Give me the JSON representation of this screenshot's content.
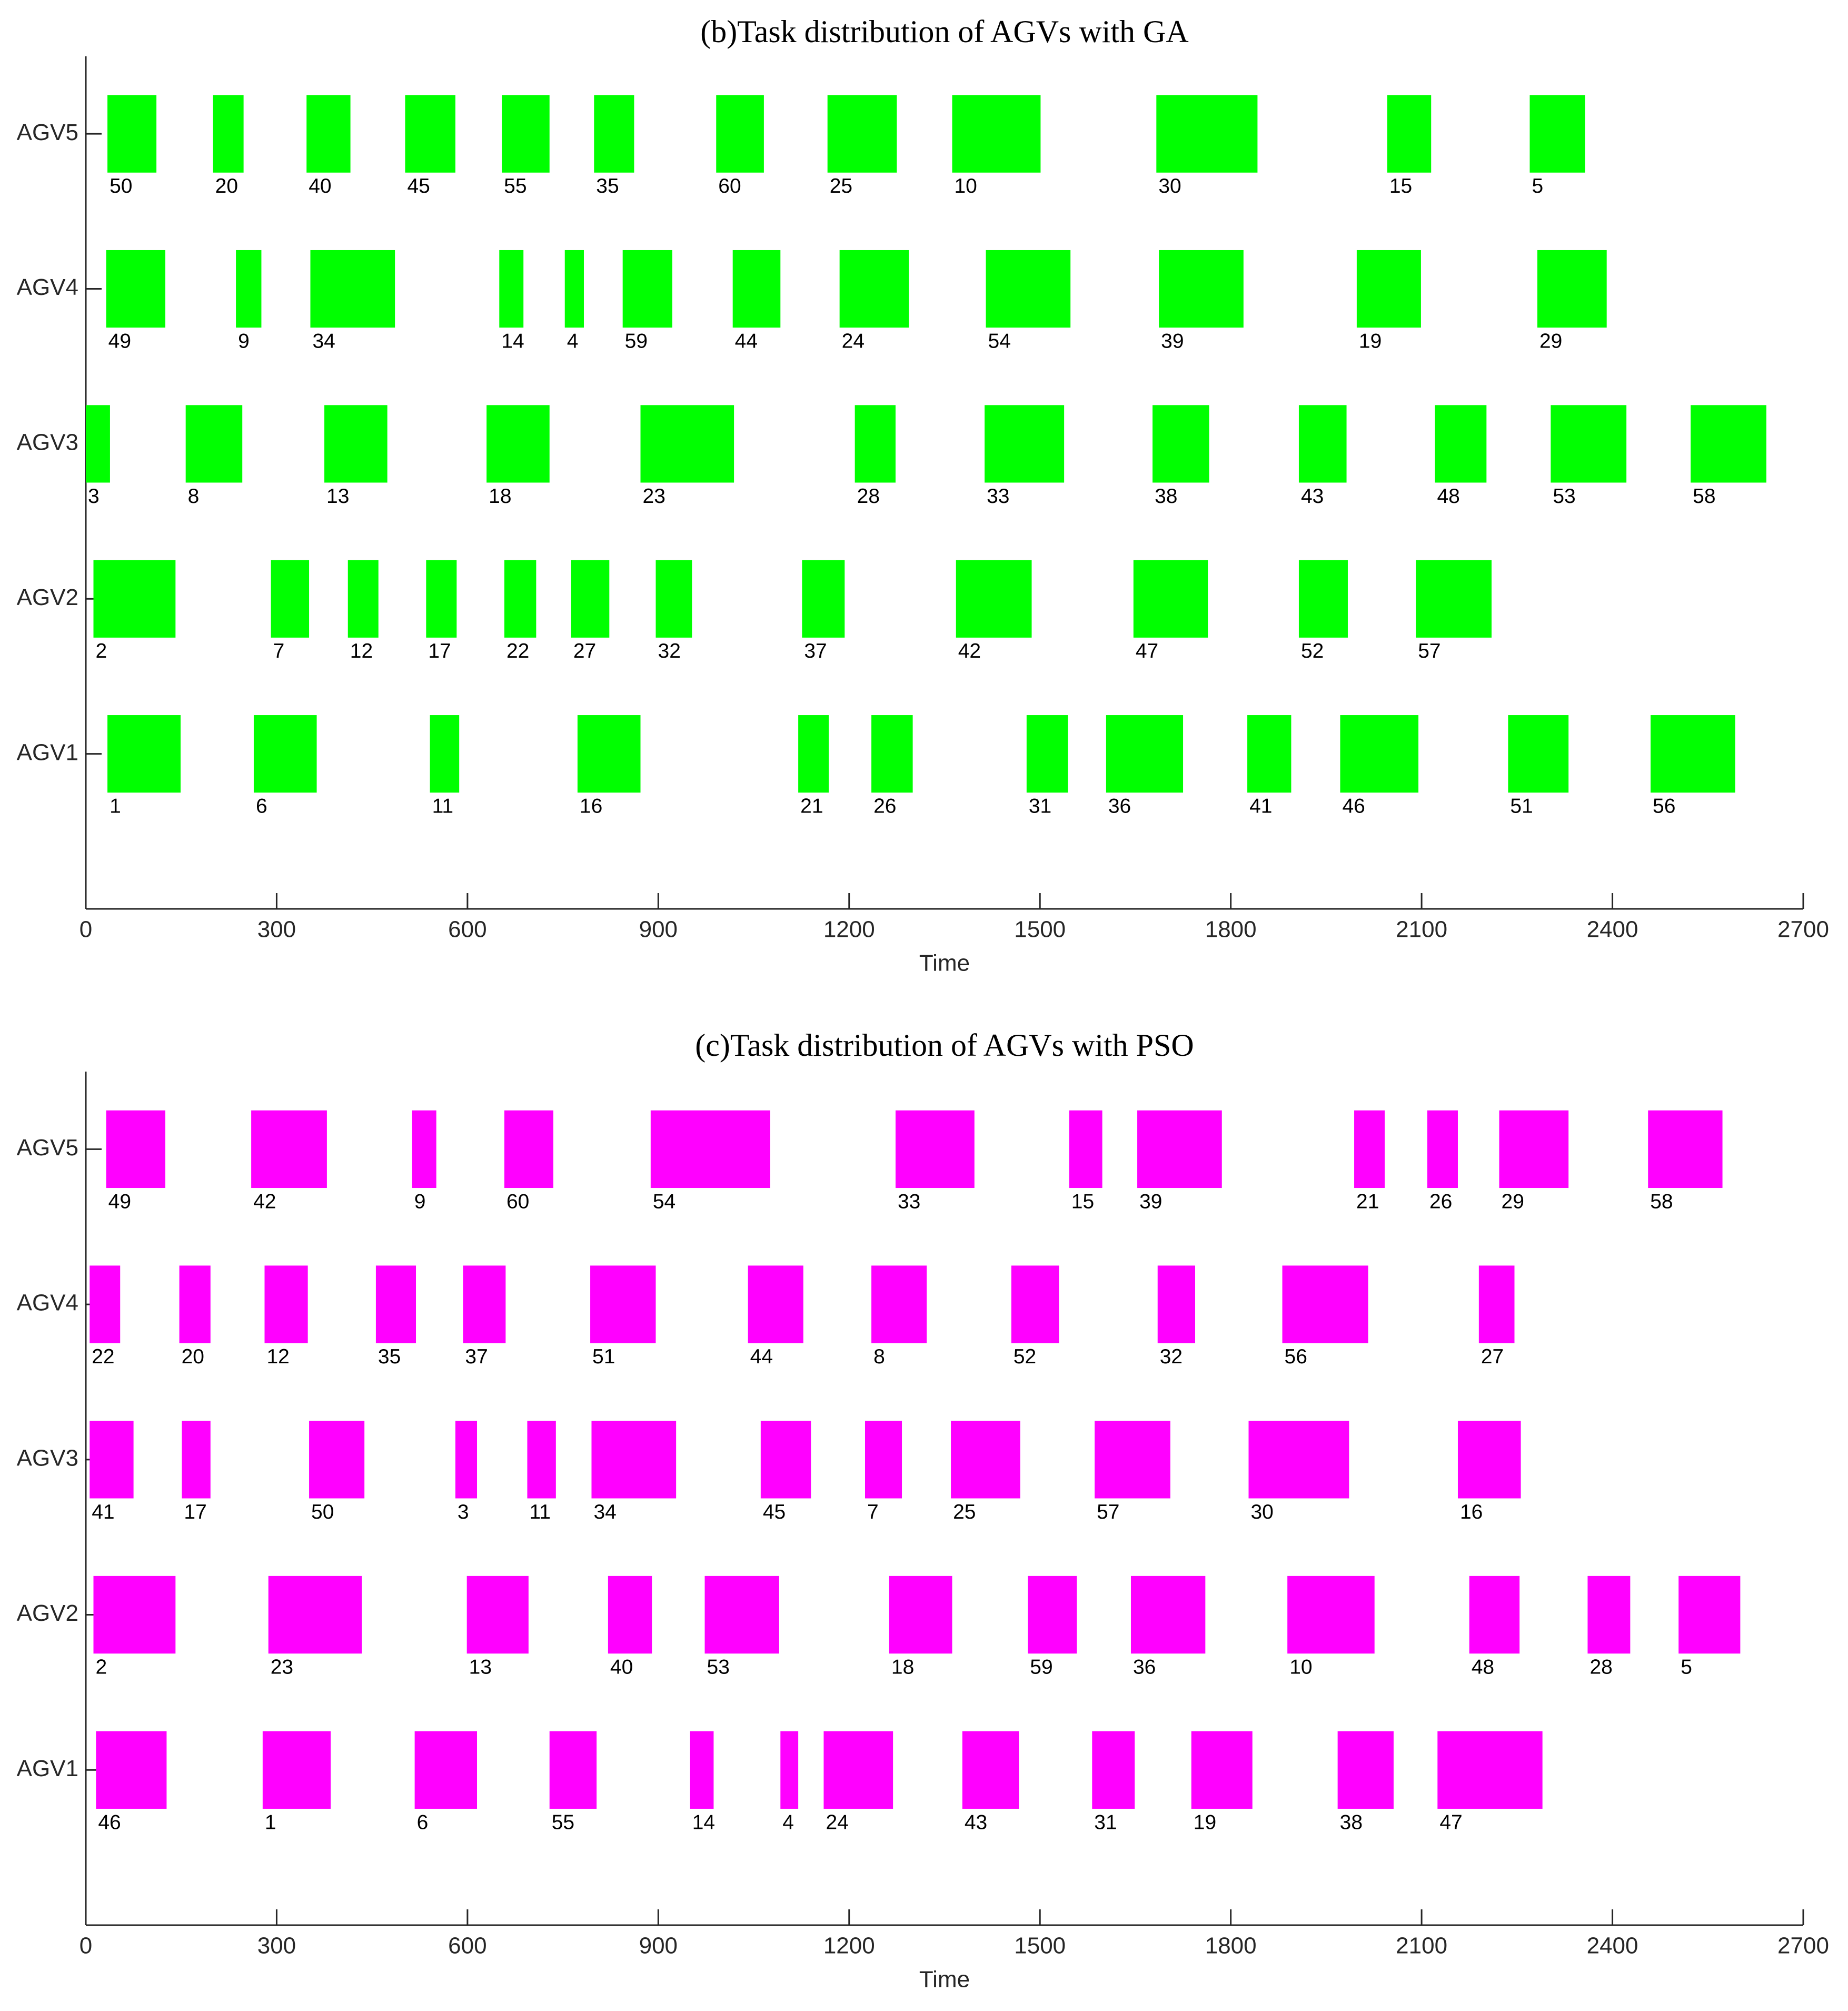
{
  "chart_data": [
    {
      "type": "gantt",
      "title": "(b)Task distribution of AGVs with GA",
      "xlabel": "Time",
      "color": "#00ff00",
      "categories": [
        "AGV1",
        "AGV2",
        "AGV3",
        "AGV4",
        "AGV5"
      ],
      "xlim": [
        0,
        2700
      ],
      "xticks": [
        0,
        300,
        600,
        900,
        1200,
        1500,
        1800,
        2100,
        2400,
        2700
      ],
      "tasks": [
        {
          "label": "50",
          "category": "AGV5",
          "start": 34,
          "end": 111
        },
        {
          "label": "20",
          "category": "AGV5",
          "start": 200,
          "end": 248
        },
        {
          "label": "40",
          "category": "AGV5",
          "start": 347,
          "end": 416
        },
        {
          "label": "45",
          "category": "AGV5",
          "start": 502,
          "end": 581
        },
        {
          "label": "55",
          "category": "AGV5",
          "start": 654,
          "end": 729
        },
        {
          "label": "35",
          "category": "AGV5",
          "start": 799,
          "end": 862
        },
        {
          "label": "60",
          "category": "AGV5",
          "start": 991,
          "end": 1066
        },
        {
          "label": "25",
          "category": "AGV5",
          "start": 1166,
          "end": 1275
        },
        {
          "label": "10",
          "category": "AGV5",
          "start": 1362,
          "end": 1501
        },
        {
          "label": "30",
          "category": "AGV5",
          "start": 1683,
          "end": 1842
        },
        {
          "label": "15",
          "category": "AGV5",
          "start": 2046,
          "end": 2115
        },
        {
          "label": "5",
          "category": "AGV5",
          "start": 2270,
          "end": 2357
        },
        {
          "label": "49",
          "category": "AGV4",
          "start": 32,
          "end": 125
        },
        {
          "label": "9",
          "category": "AGV4",
          "start": 236,
          "end": 276
        },
        {
          "label": "34",
          "category": "AGV4",
          "start": 353,
          "end": 486
        },
        {
          "label": "14",
          "category": "AGV4",
          "start": 650,
          "end": 688
        },
        {
          "label": "4",
          "category": "AGV4",
          "start": 753,
          "end": 783
        },
        {
          "label": "59",
          "category": "AGV4",
          "start": 844,
          "end": 922
        },
        {
          "label": "44",
          "category": "AGV4",
          "start": 1017,
          "end": 1092
        },
        {
          "label": "24",
          "category": "AGV4",
          "start": 1185,
          "end": 1294
        },
        {
          "label": "54",
          "category": "AGV4",
          "start": 1415,
          "end": 1548
        },
        {
          "label": "39",
          "category": "AGV4",
          "start": 1687,
          "end": 1820
        },
        {
          "label": "19",
          "category": "AGV4",
          "start": 1998,
          "end": 2099
        },
        {
          "label": "29",
          "category": "AGV4",
          "start": 2282,
          "end": 2391
        },
        {
          "label": "3",
          "category": "AGV3",
          "start": 0,
          "end": 38
        },
        {
          "label": "8",
          "category": "AGV3",
          "start": 157,
          "end": 246
        },
        {
          "label": "13",
          "category": "AGV3",
          "start": 375,
          "end": 474
        },
        {
          "label": "18",
          "category": "AGV3",
          "start": 630,
          "end": 729
        },
        {
          "label": "23",
          "category": "AGV3",
          "start": 872,
          "end": 1019
        },
        {
          "label": "28",
          "category": "AGV3",
          "start": 1209,
          "end": 1273
        },
        {
          "label": "33",
          "category": "AGV3",
          "start": 1413,
          "end": 1538
        },
        {
          "label": "38",
          "category": "AGV3",
          "start": 1677,
          "end": 1766
        },
        {
          "label": "43",
          "category": "AGV3",
          "start": 1907,
          "end": 1982
        },
        {
          "label": "48",
          "category": "AGV3",
          "start": 2121,
          "end": 2202
        },
        {
          "label": "53",
          "category": "AGV3",
          "start": 2303,
          "end": 2422
        },
        {
          "label": "58",
          "category": "AGV3",
          "start": 2523,
          "end": 2642
        },
        {
          "label": "2",
          "category": "AGV2",
          "start": 12,
          "end": 141
        },
        {
          "label": "7",
          "category": "AGV2",
          "start": 291,
          "end": 351
        },
        {
          "label": "12",
          "category": "AGV2",
          "start": 412,
          "end": 460
        },
        {
          "label": "17",
          "category": "AGV2",
          "start": 535,
          "end": 583
        },
        {
          "label": "22",
          "category": "AGV2",
          "start": 658,
          "end": 708
        },
        {
          "label": "27",
          "category": "AGV2",
          "start": 763,
          "end": 823
        },
        {
          "label": "32",
          "category": "AGV2",
          "start": 896,
          "end": 953
        },
        {
          "label": "37",
          "category": "AGV2",
          "start": 1126,
          "end": 1193
        },
        {
          "label": "42",
          "category": "AGV2",
          "start": 1368,
          "end": 1487
        },
        {
          "label": "47",
          "category": "AGV2",
          "start": 1647,
          "end": 1764
        },
        {
          "label": "52",
          "category": "AGV2",
          "start": 1907,
          "end": 1984
        },
        {
          "label": "57",
          "category": "AGV2",
          "start": 2091,
          "end": 2210
        },
        {
          "label": "1",
          "category": "AGV1",
          "start": 34,
          "end": 149
        },
        {
          "label": "6",
          "category": "AGV1",
          "start": 264,
          "end": 363
        },
        {
          "label": "11",
          "category": "AGV1",
          "start": 541,
          "end": 587
        },
        {
          "label": "16",
          "category": "AGV1",
          "start": 773,
          "end": 872
        },
        {
          "label": "21",
          "category": "AGV1",
          "start": 1120,
          "end": 1168
        },
        {
          "label": "26",
          "category": "AGV1",
          "start": 1235,
          "end": 1300
        },
        {
          "label": "31",
          "category": "AGV1",
          "start": 1479,
          "end": 1544
        },
        {
          "label": "36",
          "category": "AGV1",
          "start": 1604,
          "end": 1725
        },
        {
          "label": "41",
          "category": "AGV1",
          "start": 1826,
          "end": 1895
        },
        {
          "label": "46",
          "category": "AGV1",
          "start": 1972,
          "end": 2095
        },
        {
          "label": "51",
          "category": "AGV1",
          "start": 2236,
          "end": 2331
        },
        {
          "label": "56",
          "category": "AGV1",
          "start": 2460,
          "end": 2593
        }
      ]
    },
    {
      "type": "gantt",
      "title": "(c)Task distribution of AGVs with PSO",
      "xlabel": "Time",
      "color": "#ff00ff",
      "categories": [
        "AGV1",
        "AGV2",
        "AGV3",
        "AGV4",
        "AGV5"
      ],
      "xlim": [
        0,
        2700
      ],
      "xticks": [
        0,
        300,
        600,
        900,
        1200,
        1500,
        1800,
        2100,
        2400,
        2700
      ],
      "tasks": [
        {
          "label": "49",
          "category": "AGV5",
          "start": 32,
          "end": 125
        },
        {
          "label": "42",
          "category": "AGV5",
          "start": 260,
          "end": 379
        },
        {
          "label": "9",
          "category": "AGV5",
          "start": 513,
          "end": 551
        },
        {
          "label": "60",
          "category": "AGV5",
          "start": 658,
          "end": 735
        },
        {
          "label": "54",
          "category": "AGV5",
          "start": 888,
          "end": 1076
        },
        {
          "label": "33",
          "category": "AGV5",
          "start": 1273,
          "end": 1397
        },
        {
          "label": "15",
          "category": "AGV5",
          "start": 1546,
          "end": 1598
        },
        {
          "label": "39",
          "category": "AGV5",
          "start": 1653,
          "end": 1786
        },
        {
          "label": "21",
          "category": "AGV5",
          "start": 1994,
          "end": 2042
        },
        {
          "label": "26",
          "category": "AGV5",
          "start": 2109,
          "end": 2157
        },
        {
          "label": "29",
          "category": "AGV5",
          "start": 2222,
          "end": 2331
        },
        {
          "label": "58",
          "category": "AGV5",
          "start": 2456,
          "end": 2573
        },
        {
          "label": "22",
          "category": "AGV4",
          "start": 6,
          "end": 54
        },
        {
          "label": "20",
          "category": "AGV4",
          "start": 147,
          "end": 196
        },
        {
          "label": "12",
          "category": "AGV4",
          "start": 281,
          "end": 349
        },
        {
          "label": "35",
          "category": "AGV4",
          "start": 456,
          "end": 519
        },
        {
          "label": "37",
          "category": "AGV4",
          "start": 593,
          "end": 660
        },
        {
          "label": "51",
          "category": "AGV4",
          "start": 793,
          "end": 896
        },
        {
          "label": "44",
          "category": "AGV4",
          "start": 1041,
          "end": 1128
        },
        {
          "label": "8",
          "category": "AGV4",
          "start": 1235,
          "end": 1322
        },
        {
          "label": "52",
          "category": "AGV4",
          "start": 1455,
          "end": 1530
        },
        {
          "label": "32",
          "category": "AGV4",
          "start": 1685,
          "end": 1744
        },
        {
          "label": "56",
          "category": "AGV4",
          "start": 1881,
          "end": 2016
        },
        {
          "label": "27",
          "category": "AGV4",
          "start": 2190,
          "end": 2246
        },
        {
          "label": "41",
          "category": "AGV3",
          "start": 6,
          "end": 75
        },
        {
          "label": "17",
          "category": "AGV3",
          "start": 151,
          "end": 196
        },
        {
          "label": "50",
          "category": "AGV3",
          "start": 351,
          "end": 438
        },
        {
          "label": "3",
          "category": "AGV3",
          "start": 581,
          "end": 615
        },
        {
          "label": "11",
          "category": "AGV3",
          "start": 694,
          "end": 739
        },
        {
          "label": "34",
          "category": "AGV3",
          "start": 795,
          "end": 928
        },
        {
          "label": "45",
          "category": "AGV3",
          "start": 1061,
          "end": 1140
        },
        {
          "label": "7",
          "category": "AGV3",
          "start": 1225,
          "end": 1283
        },
        {
          "label": "25",
          "category": "AGV3",
          "start": 1360,
          "end": 1469
        },
        {
          "label": "57",
          "category": "AGV3",
          "start": 1586,
          "end": 1705
        },
        {
          "label": "30",
          "category": "AGV3",
          "start": 1828,
          "end": 1986
        },
        {
          "label": "16",
          "category": "AGV3",
          "start": 2157,
          "end": 2256
        },
        {
          "label": "2",
          "category": "AGV2",
          "start": 12,
          "end": 141
        },
        {
          "label": "23",
          "category": "AGV2",
          "start": 287,
          "end": 434
        },
        {
          "label": "13",
          "category": "AGV2",
          "start": 599,
          "end": 696
        },
        {
          "label": "40",
          "category": "AGV2",
          "start": 821,
          "end": 890
        },
        {
          "label": "53",
          "category": "AGV2",
          "start": 973,
          "end": 1090
        },
        {
          "label": "18",
          "category": "AGV2",
          "start": 1263,
          "end": 1362
        },
        {
          "label": "59",
          "category": "AGV2",
          "start": 1481,
          "end": 1558
        },
        {
          "label": "36",
          "category": "AGV2",
          "start": 1643,
          "end": 1760
        },
        {
          "label": "10",
          "category": "AGV2",
          "start": 1889,
          "end": 2026
        },
        {
          "label": "48",
          "category": "AGV2",
          "start": 2175,
          "end": 2254
        },
        {
          "label": "28",
          "category": "AGV2",
          "start": 2361,
          "end": 2428
        },
        {
          "label": "5",
          "category": "AGV2",
          "start": 2504,
          "end": 2601
        },
        {
          "label": "46",
          "category": "AGV1",
          "start": 16,
          "end": 127
        },
        {
          "label": "1",
          "category": "AGV1",
          "start": 278,
          "end": 385
        },
        {
          "label": "6",
          "category": "AGV1",
          "start": 517,
          "end": 615
        },
        {
          "label": "55",
          "category": "AGV1",
          "start": 729,
          "end": 803
        },
        {
          "label": "14",
          "category": "AGV1",
          "start": 950,
          "end": 987
        },
        {
          "label": "4",
          "category": "AGV1",
          "start": 1092,
          "end": 1120
        },
        {
          "label": "24",
          "category": "AGV1",
          "start": 1160,
          "end": 1269
        },
        {
          "label": "43",
          "category": "AGV1",
          "start": 1378,
          "end": 1467
        },
        {
          "label": "31",
          "category": "AGV1",
          "start": 1582,
          "end": 1649
        },
        {
          "label": "19",
          "category": "AGV1",
          "start": 1738,
          "end": 1834
        },
        {
          "label": "38",
          "category": "AGV1",
          "start": 1968,
          "end": 2056
        },
        {
          "label": "47",
          "category": "AGV1",
          "start": 2125,
          "end": 2290
        }
      ]
    }
  ]
}
